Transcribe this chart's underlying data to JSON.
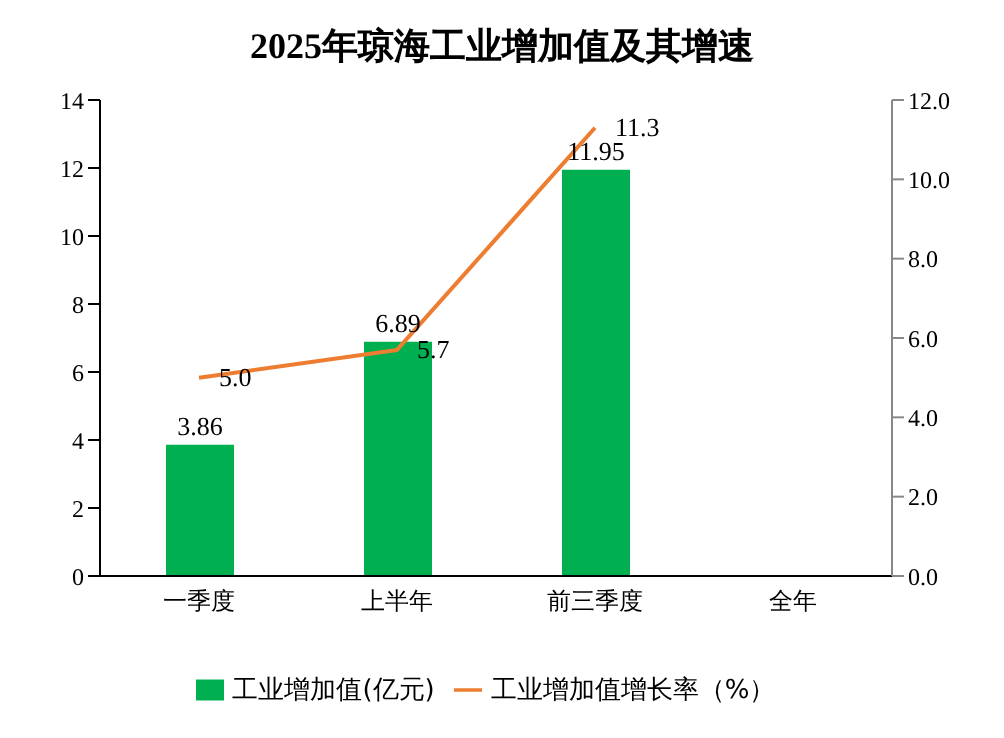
{
  "chart_data": {
    "type": "bar",
    "title": "2025年琼海工业增加值及其增速",
    "categories": [
      "一季度",
      "上半年",
      "前三季度",
      "全年"
    ],
    "series": [
      {
        "name": "工业增加值(亿元)",
        "color": "#00b050",
        "values": [
          3.86,
          6.89,
          11.95,
          null
        ],
        "value_labels": [
          "3.86",
          "6.89",
          "11.95",
          null
        ]
      },
      {
        "name": "工业增加值增长率（%）",
        "type": "line",
        "axis": "y2",
        "color": "#ed7d31",
        "values": [
          5.0,
          5.7,
          11.3,
          null
        ],
        "value_labels": [
          "5.0",
          "5.7",
          "11.3",
          null
        ]
      }
    ],
    "ylim": [
      0,
      14
    ],
    "yticks": [
      0,
      2,
      4,
      6,
      8,
      10,
      12,
      14
    ],
    "y2lim": [
      0,
      12
    ],
    "y2ticks": [
      {
        "value": 0,
        "label": "0.0"
      },
      {
        "value": 2,
        "label": "2.0"
      },
      {
        "value": 4,
        "label": "4.0"
      },
      {
        "value": 6,
        "label": "6.0"
      },
      {
        "value": 8,
        "label": "8.0"
      },
      {
        "value": 10,
        "label": "10.0"
      },
      {
        "value": 12,
        "label": "12.0"
      }
    ],
    "legend": "bottom"
  }
}
